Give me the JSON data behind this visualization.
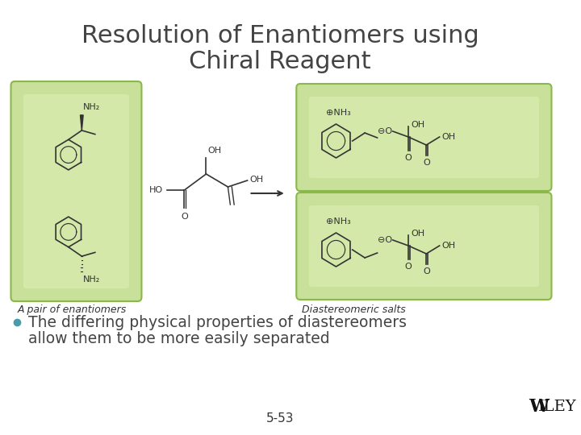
{
  "title_line1": "Resolution of Enantiomers using",
  "title_line2": "Chiral Reagent",
  "title_fontsize": 22,
  "title_color": "#444444",
  "background_color": "#ffffff",
  "bullet_text_line1": "The differing physical properties of diastereomers",
  "bullet_text_line2": "allow them to be more easily separated",
  "bullet_fontsize": 13.5,
  "bullet_color": "#4a9da8",
  "label_left": "A pair of enantiomers",
  "label_right": "Diastereomeric salts",
  "label_fontsize": 9,
  "label_color": "#333333",
  "page_number": "5-53",
  "page_fontsize": 11,
  "wiley_text": "WILEY",
  "wiley_fontsize": 16,
  "green_fill": "#c8e09a",
  "green_edge": "#8ab84a",
  "arrow_color": "#333333",
  "mol_color": "#333333"
}
